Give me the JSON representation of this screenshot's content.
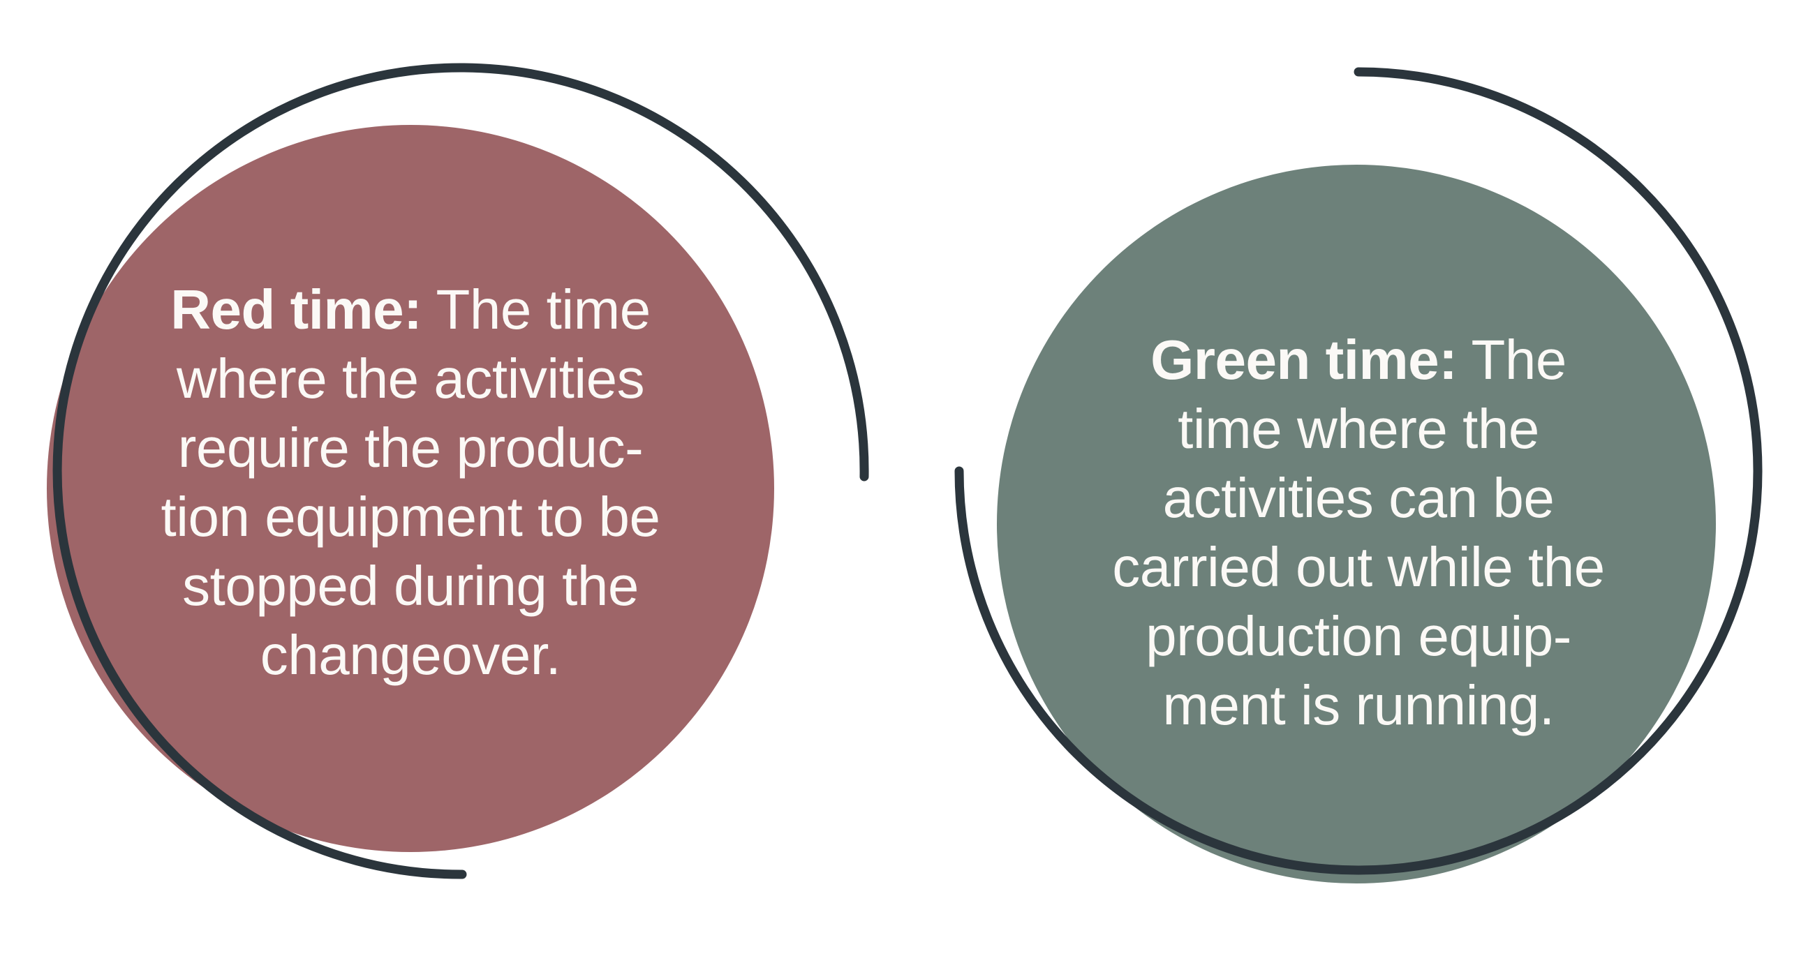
{
  "page": {
    "background_color": "#FFFFFF",
    "outline_color": "#2B353C",
    "text_color": "#FBF9F6"
  },
  "bubbles": [
    {
      "name": "red-time",
      "circle_color": "#9E6568",
      "bold_lead": "Red time:",
      "lines": [
        "Red time: The time",
        "where the activities",
        "require the produc-",
        "tion equipment to be",
        "stopped during the",
        "changeover."
      ]
    },
    {
      "name": "green-time",
      "circle_color": "#6D817A",
      "bold_lead": "Green time:",
      "lines": [
        "Green time: The",
        "time where the",
        "activities can be",
        "carried out while the",
        "production equip-",
        "ment is running."
      ]
    }
  ]
}
